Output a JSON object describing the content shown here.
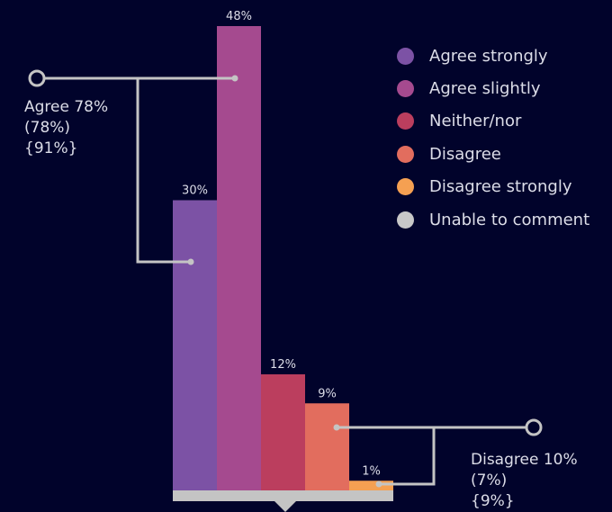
{
  "chart_data": {
    "type": "bar",
    "categories": [
      "Agree strongly",
      "Agree slightly",
      "Neither/nor",
      "Disagree",
      "Disagree strongly",
      "Unable to comment"
    ],
    "values": [
      30,
      48,
      12,
      9,
      1,
      0
    ],
    "value_labels": [
      "30%",
      "48%",
      "12%",
      "9%",
      "1%",
      ""
    ],
    "colors": [
      "#7c52a5",
      "#a54a8f",
      "#bb3e5e",
      "#e26d5e",
      "#f5a052",
      "#c8c8c8"
    ],
    "ylim": [
      0,
      48
    ],
    "grid": false,
    "legend": "top-right",
    "annotations": [
      {
        "lines": [
          "Agree 78%",
          "(78%)",
          "{91%}"
        ]
      },
      {
        "lines": [
          "Disagree 10%",
          "(7%)",
          "{9%}"
        ]
      }
    ]
  },
  "background": "#01032b",
  "line_color": "#c4c4c4"
}
